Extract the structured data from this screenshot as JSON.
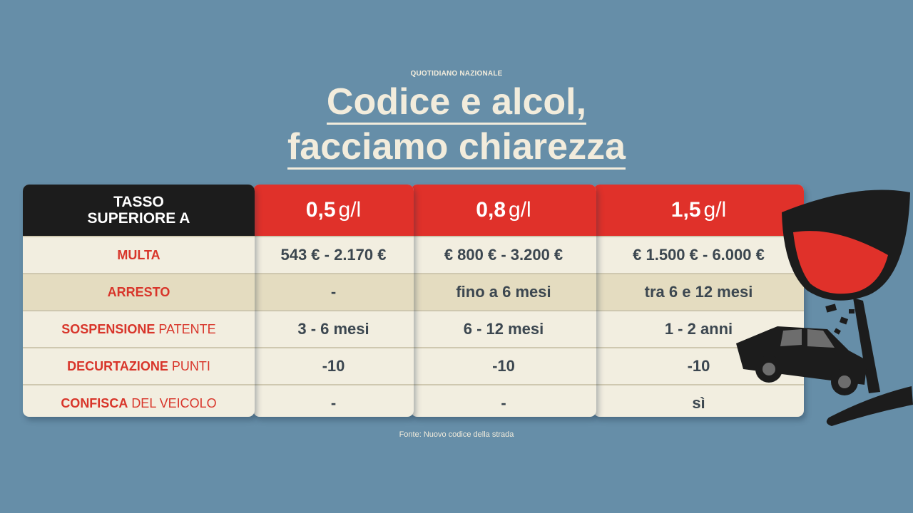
{
  "brand": "QUOTIDIANO NAZIONALE",
  "title": {
    "line1": "Codice e alcol,",
    "line2": "facciamo chiarezza"
  },
  "table": {
    "header": {
      "label_line1": "TASSO",
      "label_line2": "SUPERIORE A",
      "columns": [
        {
          "value": "0,5",
          "unit": "g/l"
        },
        {
          "value": "0,8",
          "unit": "g/l"
        },
        {
          "value": "1,5",
          "unit": "g/l"
        }
      ]
    },
    "rows": [
      {
        "label_bold": "MULTA",
        "label_normal": "",
        "values": [
          "543 € - 2.170 €",
          "€ 800 € - 3.200 €",
          "€ 1.500 € - 6.000 €"
        ]
      },
      {
        "label_bold": "ARRESTO",
        "label_normal": "",
        "values": [
          "-",
          "fino a 6 mesi",
          "tra 6 e 12 mesi"
        ]
      },
      {
        "label_bold": "SOSPENSIONE",
        "label_normal": "PATENTE",
        "values": [
          "3 - 6 mesi",
          "6 - 12 mesi",
          "1 - 2 anni"
        ]
      },
      {
        "label_bold": "DECURTAZIONE",
        "label_normal": "PUNTI",
        "values": [
          "-10",
          "-10",
          "-10"
        ]
      },
      {
        "label_bold": "CONFISCA",
        "label_normal": "DEL VEICOLO",
        "values": [
          "-",
          "-",
          "sì"
        ]
      }
    ]
  },
  "source": "Fonte: Nuovo codice della strada",
  "colors": {
    "background": "#668ea8",
    "accent_red": "#e0312a",
    "header_dark": "#1c1c1c",
    "cell_light": "#f2eee0",
    "cell_alt": "#e4dcc0",
    "value_text": "#3c4750"
  },
  "illustration": {
    "icons": [
      "wine-glass-icon",
      "crashed-car-icon"
    ]
  }
}
